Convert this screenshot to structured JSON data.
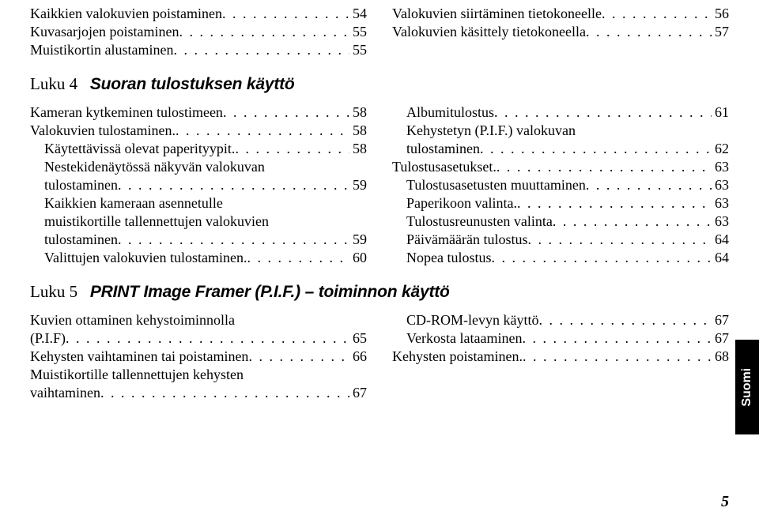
{
  "top": {
    "left": [
      {
        "label": "Kaikkien valokuvien poistaminen",
        "pg": "54",
        "indent": false
      },
      {
        "label": "Kuvasarjojen poistaminen",
        "pg": "55",
        "indent": false
      },
      {
        "label": "Muistikortin alustaminen",
        "pg": "55",
        "indent": false
      }
    ],
    "right": [
      {
        "label": "Valokuvien siirtäminen tietokoneelle",
        "pg": "56",
        "indent": false
      },
      {
        "label": "Valokuvien käsittely tietokoneella",
        "pg": "57",
        "indent": false
      }
    ]
  },
  "ch4": {
    "label": "Luku 4",
    "title": "Suoran tulostuksen käyttö",
    "left": [
      {
        "label": "Kameran kytkeminen tulostimeen",
        "pg": "58",
        "indent": false
      },
      {
        "label": "Valokuvien tulostaminen.",
        "pg": "58",
        "indent": false
      },
      {
        "label": "Käytettävissä olevat paperityypit.",
        "pg": "58",
        "indent": true
      },
      {
        "label": "Nestekidenäytössä näkyvän valokuvan",
        "indent": true,
        "wrap": true
      },
      {
        "label": "tulostaminen",
        "pg": "59",
        "indent": true,
        "cont": true
      },
      {
        "label": "Kaikkien kameraan asennetulle",
        "indent": true,
        "wrap": true
      },
      {
        "label": "muistikortille tallennettujen valokuvien",
        "indent": true,
        "wrap": true,
        "cont": true
      },
      {
        "label": "tulostaminen",
        "pg": "59",
        "indent": true,
        "cont": true
      },
      {
        "label": "Valittujen valokuvien tulostaminen.",
        "pg": "60",
        "indent": true
      }
    ],
    "right": [
      {
        "label": "Albumitulostus",
        "pg": "61",
        "indent": true
      },
      {
        "label": "Kehystetyn (P.I.F.) valokuvan",
        "indent": true,
        "wrap": true
      },
      {
        "label": "tulostaminen",
        "pg": "62",
        "indent": true,
        "cont": true
      },
      {
        "label": "Tulostusasetukset.",
        "pg": "63",
        "indent": false
      },
      {
        "label": "Tulostusasetusten muuttaminen",
        "pg": "63",
        "indent": true
      },
      {
        "label": "Paperikoon valinta.",
        "pg": "63",
        "indent": true
      },
      {
        "label": "Tulostusreunusten valinta",
        "pg": "63",
        "indent": true
      },
      {
        "label": "Päivämäärän tulostus",
        "pg": "64",
        "indent": true
      },
      {
        "label": "Nopea tulostus",
        "pg": "64",
        "indent": true
      }
    ]
  },
  "ch5": {
    "label": "Luku 5",
    "title": "PRINT Image Framer (P.I.F.) – toiminnon käyttö",
    "left": [
      {
        "label": "Kuvien ottaminen kehystoiminnolla",
        "indent": false,
        "wrap": true
      },
      {
        "label": "(P.I.F)",
        "pg": "65",
        "indent": false,
        "cont": true
      },
      {
        "label": "Kehysten vaihtaminen tai poistaminen",
        "pg": "66",
        "indent": false
      },
      {
        "label": "Muistikortille tallennettujen kehysten",
        "indent": false,
        "wrap": true
      },
      {
        "label": "vaihtaminen",
        "pg": "67",
        "indent": false,
        "cont": true
      }
    ],
    "right": [
      {
        "label": "CD-ROM-levyn käyttö",
        "pg": "67",
        "indent": true
      },
      {
        "label": "Verkosta lataaminen",
        "pg": "67",
        "indent": true
      },
      {
        "label": "Kehysten poistaminen.",
        "pg": "68",
        "indent": false
      }
    ]
  },
  "sideTab": "Suomi",
  "pageNumber": "5"
}
